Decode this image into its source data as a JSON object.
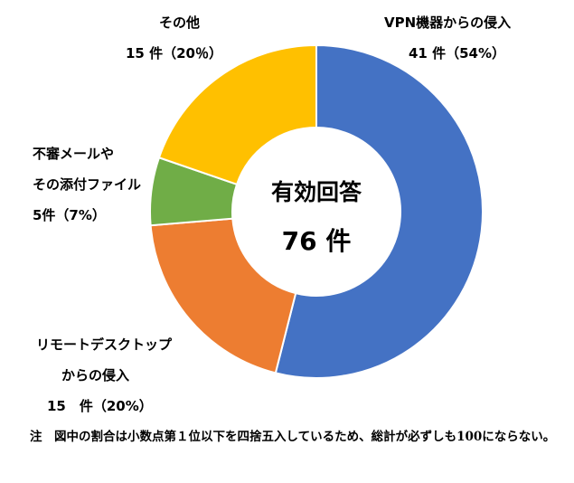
{
  "chart_data": {
    "type": "pie",
    "donut": true,
    "total": 76,
    "center_title": "有効回答",
    "center_value": "76 件",
    "slices": [
      {
        "name": "VPN機器からの侵入",
        "value": 41,
        "percent": 54,
        "value_label": "41 件（54%）",
        "color": "#4472C4"
      },
      {
        "name": "リモートデスクトップからの侵入",
        "name_lines": [
          "リモートデスクトップ",
          "からの侵入"
        ],
        "value": 15,
        "percent": 20,
        "value_label": "15　件（20%）",
        "color": "#ED7D31"
      },
      {
        "name": "不審メールやその添付ファイル",
        "name_lines": [
          "不審メールや",
          "その添付ファイル"
        ],
        "value": 5,
        "percent": 7,
        "value_label": "5件（7%）",
        "color": "#70AD47"
      },
      {
        "name": "その他",
        "value": 15,
        "percent": 20,
        "value_label": "15 件（20％）",
        "color": "#FFC000"
      }
    ],
    "note": "注　図中の割合は小数点第１位以下を四捨五入しているため、総計が必ずしも100にならない。"
  }
}
